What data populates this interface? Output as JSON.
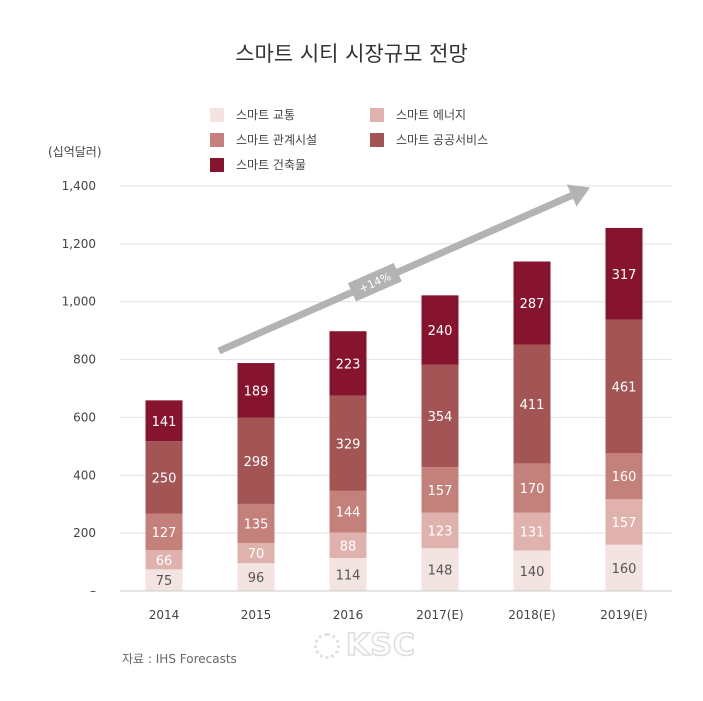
{
  "title": "스마트 시티 시장규모 전망",
  "unit_label": "(십억달러)",
  "source": "자료 : IHS Forecasts",
  "watermark": "KSC",
  "colors": {
    "gridline": "#e2e2e2",
    "arrow": "#b3b3b3",
    "axis_text": "#444444"
  },
  "chart_data": {
    "type": "bar",
    "stacked": true,
    "title": "스마트 시티 시장규모 전망",
    "ylabel": "(십억달러)",
    "xlabel": "",
    "categories": [
      "2014",
      "2015",
      "2016",
      "2017(E)",
      "2018(E)",
      "2019(E)"
    ],
    "ylim": [
      0,
      1400
    ],
    "y_ticks": [
      0,
      200,
      400,
      600,
      800,
      1000,
      1200,
      1400
    ],
    "y_tick_labels": [
      "–",
      "200",
      "400",
      "600",
      "800",
      "1,000",
      "1,200",
      "1,400"
    ],
    "grid": "horizontal",
    "legend_position": "top",
    "series": [
      {
        "name": "스마트 교통",
        "color": "#f3e3e1",
        "label_color": "#555555",
        "values": [
          75,
          96,
          114,
          148,
          140,
          160
        ]
      },
      {
        "name": "스마트 에너지",
        "color": "#dfb2ae",
        "label_color": "#ffffff",
        "values": [
          66,
          70,
          88,
          123,
          131,
          157
        ]
      },
      {
        "name": "스마트 관계시설",
        "color": "#c4807a",
        "label_color": "#ffffff",
        "values": [
          127,
          135,
          144,
          157,
          170,
          160
        ]
      },
      {
        "name": "스마트 공공서비스",
        "color": "#a35556",
        "label_color": "#ffffff",
        "values": [
          250,
          298,
          329,
          354,
          411,
          461
        ]
      },
      {
        "name": "스마트 건축물",
        "color": "#86142e",
        "label_color": "#ffffff",
        "values": [
          141,
          189,
          223,
          240,
          287,
          317
        ]
      }
    ],
    "annotations": [
      {
        "text": "+14%",
        "type": "growth-arrow"
      }
    ]
  }
}
